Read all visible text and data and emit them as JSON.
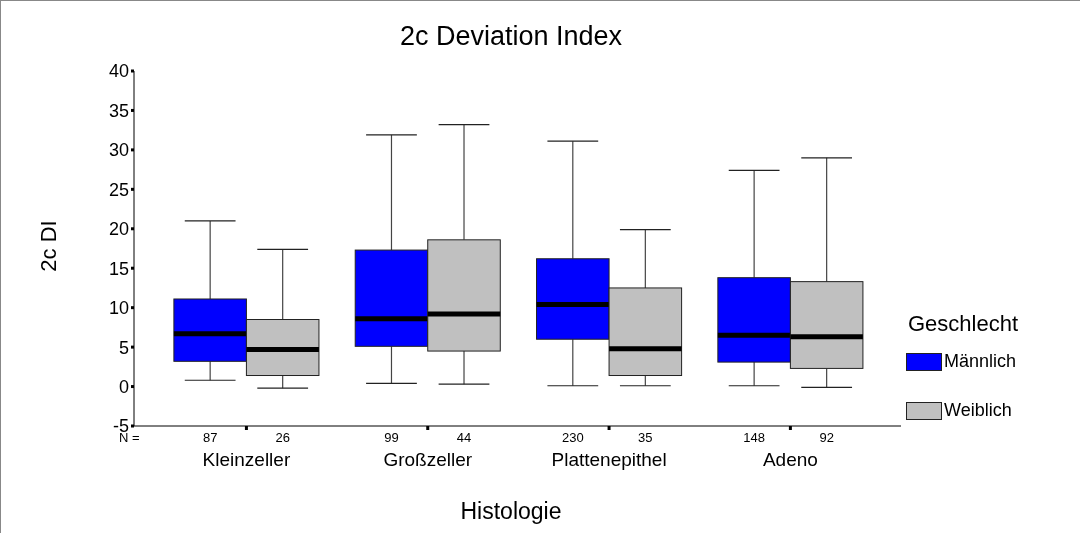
{
  "chart_data": {
    "type": "box",
    "title": "2c Deviation Index",
    "xlabel": "Histologie",
    "ylabel": "2c DI",
    "legend_title": "Geschlecht",
    "legend": "right",
    "categories": [
      "Kleinzeller",
      "Großzeller",
      "Plattenepithel",
      "Adeno"
    ],
    "ylim": [
      -5,
      40
    ],
    "yticks": [
      -5,
      0,
      5,
      10,
      15,
      20,
      25,
      30,
      35,
      40
    ],
    "series": [
      {
        "name": "Männlich",
        "color": "#0000ff",
        "boxes": [
          {
            "low": 0.8,
            "q1": 3.2,
            "median": 6.7,
            "q3": 11.1,
            "high": 21.0
          },
          {
            "low": 0.4,
            "q1": 5.1,
            "median": 8.6,
            "q3": 17.3,
            "high": 31.9
          },
          {
            "low": 0.1,
            "q1": 6.0,
            "median": 10.4,
            "q3": 16.2,
            "high": 31.1
          },
          {
            "low": 0.1,
            "q1": 3.1,
            "median": 6.5,
            "q3": 13.8,
            "high": 27.4
          }
        ]
      },
      {
        "name": "Weiblich",
        "color": "#c0c0c0",
        "boxes": [
          {
            "low": -0.2,
            "q1": 1.4,
            "median": 4.7,
            "q3": 8.5,
            "high": 17.4
          },
          {
            "low": 0.3,
            "q1": 4.5,
            "median": 9.2,
            "q3": 18.6,
            "high": 33.2
          },
          {
            "low": 0.1,
            "q1": 1.4,
            "median": 4.8,
            "q3": 12.5,
            "high": 19.9
          },
          {
            "low": -0.1,
            "q1": 2.3,
            "median": 6.3,
            "q3": 13.3,
            "high": 29.0
          }
        ]
      }
    ],
    "annotations": [
      "N =",
      "87",
      "26",
      "99",
      "44",
      "230",
      "35",
      "148",
      "92"
    ]
  }
}
